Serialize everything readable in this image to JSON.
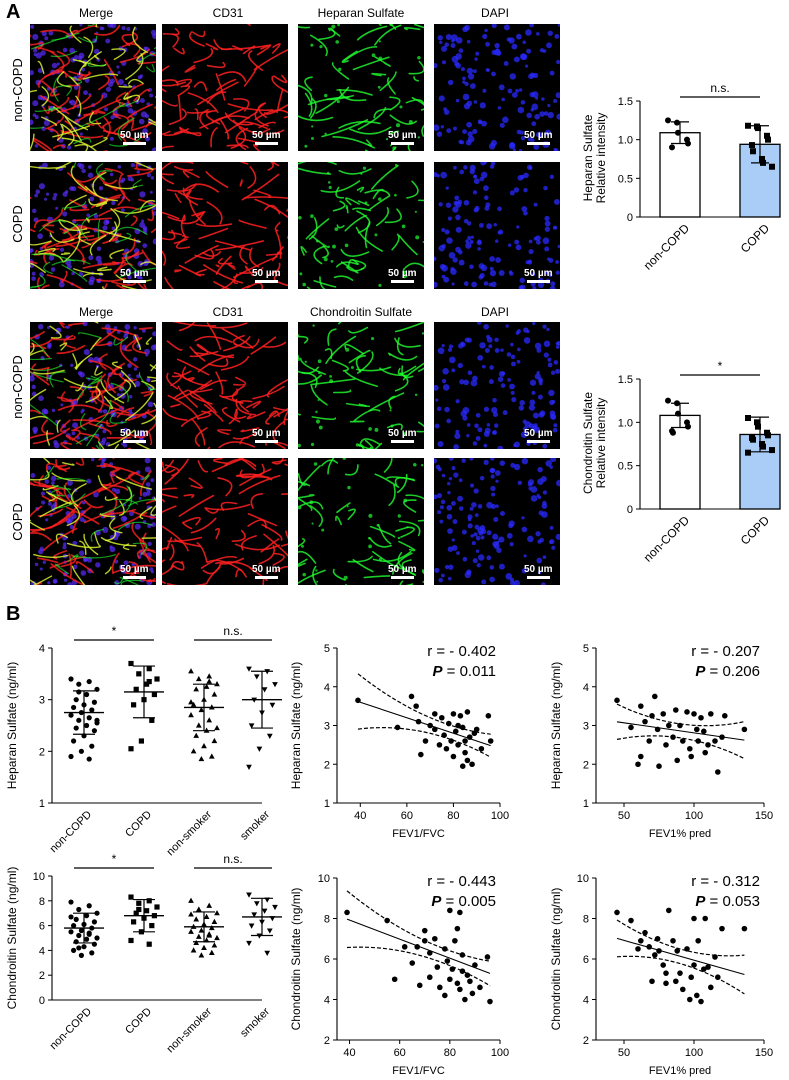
{
  "panel_a": {
    "letter": "A",
    "hs_block": {
      "columns": [
        "Merge",
        "CD31",
        "Heparan Sulfate",
        "DAPI"
      ],
      "rows": [
        "non-COPD",
        "COPD"
      ],
      "scale_label": "50 µm"
    },
    "cs_block": {
      "columns": [
        "Merge",
        "CD31",
        "Chondroitin Sulfate",
        "DAPI"
      ],
      "rows": [
        "non-COPD",
        "COPD"
      ],
      "scale_label": "50 µm"
    }
  },
  "panel_b": {
    "letter": "B"
  },
  "colors": {
    "red_stain": "#ff2020",
    "green_stain": "#20ff30",
    "blue_stain": "#2a2aff",
    "bar_copd": "#a9cdf6"
  },
  "chart_data": [
    {
      "id": "a_hs_bar",
      "type": "bar",
      "ylabel": [
        "Heparan Sulfate",
        "Relative intensity"
      ],
      "categories": [
        "non-COPD",
        "COPD"
      ],
      "values": [
        1.09,
        0.94
      ],
      "sd": [
        0.14,
        0.24
      ],
      "ylim": [
        0,
        1.5
      ],
      "yticks": [
        0,
        0.5,
        1.0,
        1.5
      ],
      "ytick_labels": [
        "0",
        "0.5",
        "1.0",
        "1.5"
      ],
      "significance": "n.s.",
      "points": [
        [
          1.25,
          1.22,
          1.09,
          1.0,
          0.95,
          0.9
        ],
        [
          1.18,
          1.17,
          1.15,
          1.05,
          1.0,
          0.93,
          0.85,
          0.75,
          0.7,
          0.65
        ]
      ]
    },
    {
      "id": "a_cs_bar",
      "type": "bar",
      "ylabel": [
        "Chondroitin Sulfate",
        "Relative intensity"
      ],
      "categories": [
        "non-COPD",
        "COPD"
      ],
      "values": [
        1.08,
        0.86
      ],
      "sd": [
        0.14,
        0.2
      ],
      "ylim": [
        0,
        1.5
      ],
      "yticks": [
        0,
        0.5,
        1.0,
        1.5
      ],
      "ytick_labels": [
        "0",
        "0.5",
        "1.0",
        "1.5"
      ],
      "significance": "*",
      "points": [
        [
          1.25,
          1.22,
          1.1,
          1.0,
          0.95,
          0.9,
          0.88
        ],
        [
          1.05,
          1.0,
          0.95,
          0.88,
          0.85,
          0.82,
          0.8,
          0.75,
          0.72,
          0.68,
          0.65
        ]
      ]
    },
    {
      "id": "b_hs_dot",
      "type": "scatter",
      "ylabel": "Heparan Sulfate (ng/ml)",
      "categories": [
        "non-COPD",
        "COPD",
        "non-smoker",
        "smoker"
      ],
      "ylim": [
        1,
        4
      ],
      "yticks": [
        1,
        2,
        3,
        4
      ],
      "ytick_labels": [
        "1",
        "2",
        "3",
        "4"
      ],
      "means": [
        2.75,
        3.15,
        2.85,
        3.0
      ],
      "sd": [
        0.42,
        0.5,
        0.45,
        0.55
      ],
      "significance": [
        {
          "pair": [
            0,
            1
          ],
          "label": "*"
        },
        {
          "pair": [
            2,
            3
          ],
          "label": "n.s."
        }
      ],
      "points": [
        [
          3.4,
          3.35,
          3.3,
          3.2,
          3.1,
          3.0,
          2.95,
          2.9,
          2.85,
          2.8,
          2.75,
          2.7,
          2.65,
          2.6,
          2.55,
          2.5,
          2.45,
          2.4,
          2.3,
          2.2,
          2.1,
          2.0,
          1.9,
          1.85,
          3.15,
          2.6
        ],
        [
          3.7,
          3.6,
          3.5,
          3.4,
          3.3,
          3.2,
          3.1,
          3.0,
          2.9,
          2.6,
          2.2,
          2.05,
          3.35
        ],
        [
          3.55,
          3.45,
          3.4,
          3.3,
          3.25,
          3.2,
          3.1,
          3.0,
          2.9,
          2.85,
          2.8,
          2.7,
          2.6,
          2.5,
          2.45,
          2.4,
          2.3,
          2.2,
          2.1,
          2.0,
          1.9,
          1.85,
          2.95,
          3.35
        ],
        [
          3.6,
          3.55,
          3.45,
          3.3,
          3.2,
          3.0,
          2.9,
          2.75,
          2.5,
          2.3,
          2.05,
          1.7
        ]
      ]
    },
    {
      "id": "b_hs_fev1fvc",
      "type": "scatter",
      "xlabel": "FEV1/FVC",
      "ylabel": "Heparan Sulfate (ng/ml)",
      "xlim": [
        30,
        100
      ],
      "ylim": [
        1,
        5
      ],
      "xticks": [
        40,
        60,
        80,
        100
      ],
      "xtick_labels": [
        "40",
        "60",
        "80",
        "100"
      ],
      "yticks": [
        1,
        2,
        3,
        4,
        5
      ],
      "ytick_labels": [
        "1",
        "2",
        "3",
        "4",
        "5"
      ],
      "annotation_r": "r = - 0.402",
      "annotation_p_label": "P",
      "annotation_p_value": " = 0.011",
      "fit": {
        "slope": -0.02,
        "intercept": 4.4
      },
      "x": [
        39,
        56,
        62,
        64,
        65,
        66,
        68,
        70,
        72,
        72,
        74,
        75,
        76,
        77,
        78,
        79,
        80,
        80,
        81,
        82,
        82,
        83,
        84,
        84,
        85,
        85,
        86,
        86,
        87,
        88,
        89,
        90,
        92,
        95,
        96
      ],
      "y": [
        3.65,
        2.95,
        3.75,
        3.5,
        3.1,
        2.25,
        2.6,
        3.0,
        2.9,
        3.3,
        2.5,
        3.2,
        2.75,
        2.4,
        3.05,
        2.6,
        3.3,
        2.2,
        2.85,
        3.0,
        2.5,
        3.25,
        1.95,
        2.95,
        2.3,
        2.6,
        3.35,
        2.1,
        2.7,
        2.0,
        2.8,
        2.9,
        2.4,
        3.25,
        2.6
      ]
    },
    {
      "id": "b_hs_fev1pred",
      "type": "scatter",
      "xlabel": "FEV1% pred",
      "ylabel": "Heparan Sulfate (ng/ml)",
      "xlim": [
        30,
        150
      ],
      "ylim": [
        1,
        5
      ],
      "xticks": [
        50,
        100,
        150
      ],
      "xtick_labels": [
        "50",
        "100",
        "150"
      ],
      "yticks": [
        1,
        2,
        3,
        4,
        5
      ],
      "ytick_labels": [
        "1",
        "2",
        "3",
        "4",
        "5"
      ],
      "annotation_r": "r = - 0.207",
      "annotation_p_label": "P",
      "annotation_p_value": " = 0.206",
      "fit": {
        "slope": -0.0052,
        "intercept": 3.33
      },
      "x": [
        45,
        55,
        60,
        62,
        65,
        68,
        70,
        72,
        74,
        75,
        78,
        80,
        82,
        85,
        87,
        88,
        90,
        92,
        95,
        97,
        98,
        100,
        102,
        103,
        105,
        107,
        108,
        110,
        112,
        115,
        117,
        120,
        122,
        136,
        62
      ],
      "y": [
        3.65,
        2.95,
        2.0,
        3.5,
        3.1,
        2.6,
        3.25,
        3.75,
        2.9,
        1.95,
        3.3,
        2.5,
        3.0,
        2.7,
        3.4,
        2.1,
        3.0,
        2.6,
        3.35,
        2.4,
        2.2,
        3.3,
        2.9,
        2.6,
        3.2,
        2.85,
        2.3,
        2.5,
        3.3,
        2.6,
        1.8,
        2.7,
        3.25,
        2.9,
        2.2
      ]
    },
    {
      "id": "b_cs_dot",
      "type": "scatter",
      "ylabel": "Chondroitin Sulfate (ng/ml)",
      "categories": [
        "non-COPD",
        "COPD",
        "non-smoker",
        "smoker"
      ],
      "ylim": [
        0,
        10
      ],
      "yticks": [
        0,
        2,
        4,
        6,
        8,
        10
      ],
      "ytick_labels": [
        "0",
        "2",
        "4",
        "6",
        "8",
        "10"
      ],
      "means": [
        5.8,
        6.8,
        5.9,
        6.7
      ],
      "sd": [
        1.2,
        1.3,
        1.2,
        1.5
      ],
      "significance": [
        {
          "pair": [
            0,
            1
          ],
          "label": "*"
        },
        {
          "pair": [
            2,
            3
          ],
          "label": "n.s."
        }
      ],
      "points": [
        [
          7.9,
          7.6,
          7.3,
          7.0,
          6.8,
          6.5,
          6.3,
          6.1,
          6.0,
          5.8,
          5.6,
          5.5,
          5.3,
          5.2,
          5.0,
          4.9,
          4.7,
          4.5,
          4.3,
          4.0,
          3.8,
          3.6,
          6.7,
          5.4,
          4.2
        ],
        [
          8.3,
          8.0,
          7.8,
          7.5,
          7.2,
          7.0,
          6.8,
          6.6,
          6.3,
          6.0,
          5.5,
          4.8,
          4.5,
          7.3
        ],
        [
          8.0,
          7.6,
          7.3,
          7.0,
          6.7,
          6.5,
          6.3,
          6.1,
          5.9,
          5.8,
          5.6,
          5.5,
          5.3,
          5.1,
          5.0,
          4.8,
          4.6,
          4.4,
          4.2,
          4.0,
          3.8,
          3.6,
          6.9,
          5.2
        ],
        [
          8.5,
          8.1,
          7.8,
          7.5,
          7.2,
          6.9,
          6.6,
          6.3,
          6.0,
          5.6,
          5.2,
          4.6,
          3.8
        ]
      ]
    },
    {
      "id": "b_cs_fev1fvc",
      "type": "scatter",
      "xlabel": "FEV1/FVC",
      "ylabel": "Chondroitin Sulfate (ng/ml)",
      "xlim": [
        35,
        100
      ],
      "ylim": [
        2,
        10
      ],
      "xticks": [
        40,
        60,
        80,
        100
      ],
      "xtick_labels": [
        "40",
        "60",
        "80",
        "100"
      ],
      "yticks": [
        2,
        4,
        6,
        8,
        10
      ],
      "ytick_labels": [
        "2",
        "4",
        "6",
        "8",
        "10"
      ],
      "annotation_r": "r = - 0.443",
      "annotation_p_label": "P",
      "annotation_p_value": " = 0.005",
      "fit": {
        "slope": -0.047,
        "intercept": 9.8
      },
      "x": [
        39,
        55,
        58,
        62,
        65,
        67,
        68,
        70,
        72,
        72,
        74,
        75,
        76,
        78,
        79,
        80,
        80,
        81,
        82,
        83,
        83,
        84,
        85,
        85,
        86,
        87,
        88,
        89,
        90,
        92,
        95,
        96,
        70,
        78,
        84
      ],
      "y": [
        8.3,
        7.9,
        5.0,
        6.6,
        5.8,
        6.6,
        4.7,
        6.9,
        5.1,
        6.3,
        7.0,
        5.6,
        4.6,
        6.5,
        5.9,
        8.4,
        5.0,
        5.5,
        6.9,
        4.8,
        7.5,
        4.5,
        6.2,
        5.4,
        4.0,
        5.2,
        4.9,
        4.3,
        5.7,
        4.6,
        6.1,
        3.9,
        7.4,
        4.2,
        8.3
      ]
    },
    {
      "id": "b_cs_fev1pred",
      "type": "scatter",
      "xlabel": "FEV1% pred",
      "ylabel": "Chondroitin Sulfate (ng/ml)",
      "xlim": [
        30,
        150
      ],
      "ylim": [
        2,
        10
      ],
      "xticks": [
        50,
        100,
        150
      ],
      "xtick_labels": [
        "50",
        "100",
        "150"
      ],
      "yticks": [
        2,
        4,
        6,
        8,
        10
      ],
      "ytick_labels": [
        "2",
        "4",
        "6",
        "8",
        "10"
      ],
      "annotation_r": "r = - 0.312",
      "annotation_p_label": "P",
      "annotation_p_value": " = 0.053",
      "fit": {
        "slope": -0.0196,
        "intercept": 7.9
      },
      "x": [
        45,
        55,
        60,
        62,
        65,
        68,
        70,
        72,
        74,
        75,
        78,
        80,
        82,
        85,
        87,
        88,
        90,
        92,
        95,
        97,
        98,
        100,
        100,
        102,
        103,
        105,
        107,
        108,
        110,
        112,
        115,
        117,
        120,
        136,
        80
      ],
      "y": [
        8.3,
        7.9,
        6.5,
        6.9,
        7.3,
        6.6,
        4.9,
        6.2,
        7.0,
        6.4,
        5.7,
        5.3,
        8.4,
        6.9,
        4.9,
        6.4,
        5.3,
        4.5,
        6.5,
        4.0,
        5.1,
        5.7,
        8.0,
        4.2,
        6.9,
        3.9,
        5.5,
        8.0,
        5.6,
        4.6,
        6.1,
        5.1,
        7.5,
        7.5,
        4.8
      ]
    }
  ]
}
